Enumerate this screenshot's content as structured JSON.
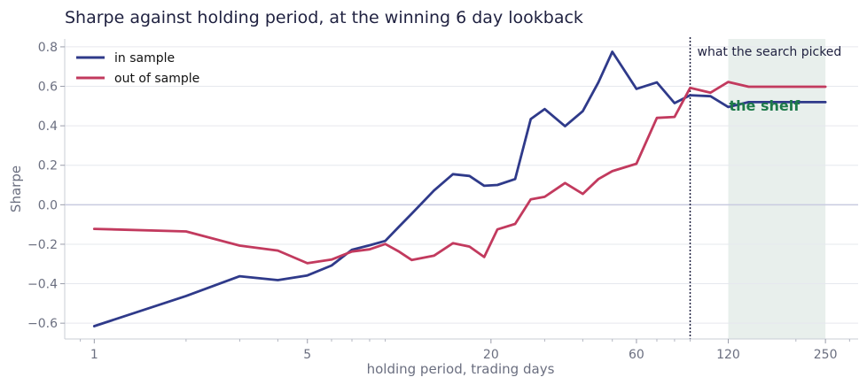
{
  "chart_data": {
    "type": "line",
    "title": "Sharpe against holding period, at the winning 6 day lookback",
    "xlabel": "holding period, trading days",
    "ylabel": "Sharpe",
    "x_scale": "log",
    "xlim": [
      0.8,
      320
    ],
    "ylim": [
      -0.68,
      0.84
    ],
    "x_ticks": [
      1,
      5,
      20,
      60,
      120,
      250
    ],
    "x_tick_labels": [
      "1",
      "5",
      "20",
      "60",
      "120",
      "250"
    ],
    "y_ticks": [
      -0.6,
      -0.4,
      -0.2,
      0.0,
      0.2,
      0.4,
      0.6,
      0.8
    ],
    "y_tick_labels": [
      "−0.6",
      "−0.4",
      "−0.2",
      "0.0",
      "0.2",
      "0.4",
      "0.6",
      "0.8"
    ],
    "grid": true,
    "legend_position": "top-left",
    "zero_line": 0,
    "series": [
      {
        "name": "in sample",
        "color": "#2f3a8a",
        "x": [
          1,
          2,
          3,
          4,
          5,
          6,
          7,
          8,
          9,
          10,
          11,
          13,
          15,
          17,
          19,
          21,
          24,
          27,
          30,
          35,
          40,
          45,
          50,
          60,
          70,
          80,
          90,
          105,
          120,
          140,
          160,
          180,
          200,
          225,
          250
        ],
        "y": [
          -0.615,
          -0.462,
          -0.362,
          -0.382,
          -0.358,
          -0.308,
          -0.228,
          -0.205,
          -0.183,
          -0.11,
          -0.045,
          0.072,
          0.155,
          0.146,
          0.096,
          0.1,
          0.13,
          0.434,
          0.485,
          0.398,
          0.474,
          0.62,
          0.775,
          0.587,
          0.62,
          0.515,
          0.555,
          0.55,
          0.495,
          0.52,
          0.52,
          0.52,
          0.52,
          0.52,
          0.52
        ]
      },
      {
        "name": "out of sample",
        "color": "#c23a5e",
        "x": [
          1,
          2,
          3,
          4,
          5,
          6,
          7,
          8,
          9,
          10,
          11,
          13,
          15,
          17,
          19,
          21,
          24,
          27,
          30,
          35,
          40,
          45,
          50,
          60,
          70,
          80,
          90,
          105,
          120,
          140,
          160,
          180,
          200,
          225,
          250
        ],
        "y": [
          -0.122,
          -0.135,
          -0.207,
          -0.232,
          -0.296,
          -0.278,
          -0.237,
          -0.226,
          -0.199,
          -0.238,
          -0.28,
          -0.258,
          -0.195,
          -0.212,
          -0.265,
          -0.125,
          -0.097,
          0.027,
          0.04,
          0.11,
          0.055,
          0.13,
          0.17,
          0.208,
          0.44,
          0.445,
          0.592,
          0.568,
          0.622,
          0.598,
          0.598,
          0.598,
          0.598,
          0.598,
          0.598
        ]
      }
    ],
    "annotations": [
      {
        "kind": "vline",
        "x": 90,
        "label": "what the search picked"
      },
      {
        "kind": "span",
        "x0": 120,
        "x1": 250,
        "label": "the shelf",
        "color": "#1e7a4a",
        "fill": "#e8efec"
      }
    ]
  }
}
